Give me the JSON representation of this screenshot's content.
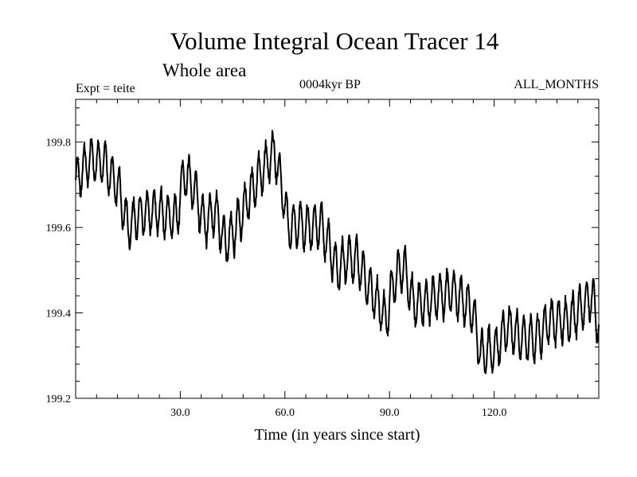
{
  "chart_data": {
    "type": "line",
    "title": "Volume Integral Ocean Tracer 14",
    "subtitle": "Whole area",
    "experiment_label": "Expt = teite",
    "period_label": "0004kyr BP",
    "months_label": "ALL_MONTHS",
    "xlabel": "Time (in years since start)",
    "ylabel": "",
    "xlim": [
      0,
      150
    ],
    "ylim": [
      199.2,
      199.9
    ],
    "xticks": [
      30,
      60,
      90,
      120
    ],
    "xtick_labels": [
      "30.0",
      "60.0",
      "90.0",
      "120.0"
    ],
    "yticks": [
      199.2,
      199.4,
      199.6,
      199.8
    ],
    "ytick_labels": [
      "199.2",
      "199.4",
      "199.6",
      "199.8"
    ],
    "grid": false,
    "legend": "none",
    "series": [
      {
        "name": "Ocean Tracer 14",
        "color": "#000000",
        "envelope_x": [
          0,
          4,
          8,
          12,
          15,
          18,
          22,
          26,
          29,
          31,
          34,
          37,
          40,
          43,
          46,
          50,
          54,
          57,
          59,
          61,
          64,
          67,
          70,
          73,
          75,
          78,
          81,
          84,
          87,
          89,
          91,
          94,
          97,
          100,
          104,
          108,
          111,
          114,
          116,
          118,
          120,
          124,
          128,
          132,
          136,
          140,
          144,
          148,
          150
        ],
        "envelope_y": [
          199.71,
          199.76,
          199.75,
          199.7,
          199.6,
          199.63,
          199.64,
          199.63,
          199.62,
          199.73,
          199.69,
          199.61,
          199.64,
          199.56,
          199.6,
          199.68,
          199.74,
          199.78,
          199.7,
          199.6,
          199.61,
          199.6,
          199.61,
          199.55,
          199.5,
          199.53,
          199.52,
          199.46,
          199.42,
          199.38,
          199.47,
          199.51,
          199.42,
          199.42,
          199.44,
          199.45,
          199.43,
          199.4,
          199.3,
          199.31,
          199.31,
          199.37,
          199.34,
          199.34,
          199.38,
          199.38,
          199.4,
          199.44,
          199.37
        ],
        "oscillation_period_years": 2,
        "oscillation_amplitude": 0.05
      }
    ]
  }
}
